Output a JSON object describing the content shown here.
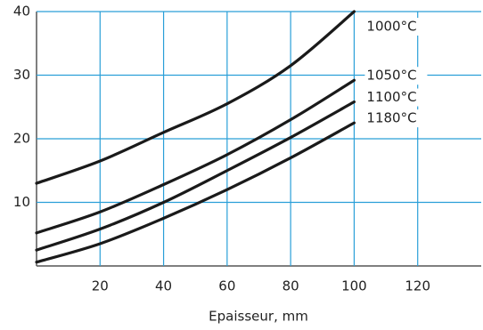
{
  "chart_data": {
    "type": "line",
    "x_label": "Epaisseur, mm",
    "x": [
      0,
      20,
      40,
      60,
      80,
      100
    ],
    "series": [
      {
        "name": "1000°C",
        "color": "#1a1a1a",
        "values": [
          13,
          16.5,
          21,
          25.5,
          31.5,
          40
        ]
      },
      {
        "name": "1050°C",
        "color": "#1a1a1a",
        "values": [
          5.2,
          8.5,
          12.8,
          17.5,
          23,
          29.2
        ]
      },
      {
        "name": "1100°C",
        "color": "#1a1a1a",
        "values": [
          2.5,
          5.8,
          10,
          15,
          20.2,
          25.8
        ]
      },
      {
        "name": "1180°C",
        "color": "#1a1a1a",
        "values": [
          0.6,
          3.5,
          7.5,
          12,
          17,
          22.5
        ]
      }
    ],
    "xlim": [
      0,
      140
    ],
    "ylim": [
      0,
      40
    ],
    "xticks": [
      20,
      40,
      60,
      80,
      100,
      120
    ],
    "yticks": [
      10,
      20,
      30,
      40
    ],
    "grid": true
  }
}
